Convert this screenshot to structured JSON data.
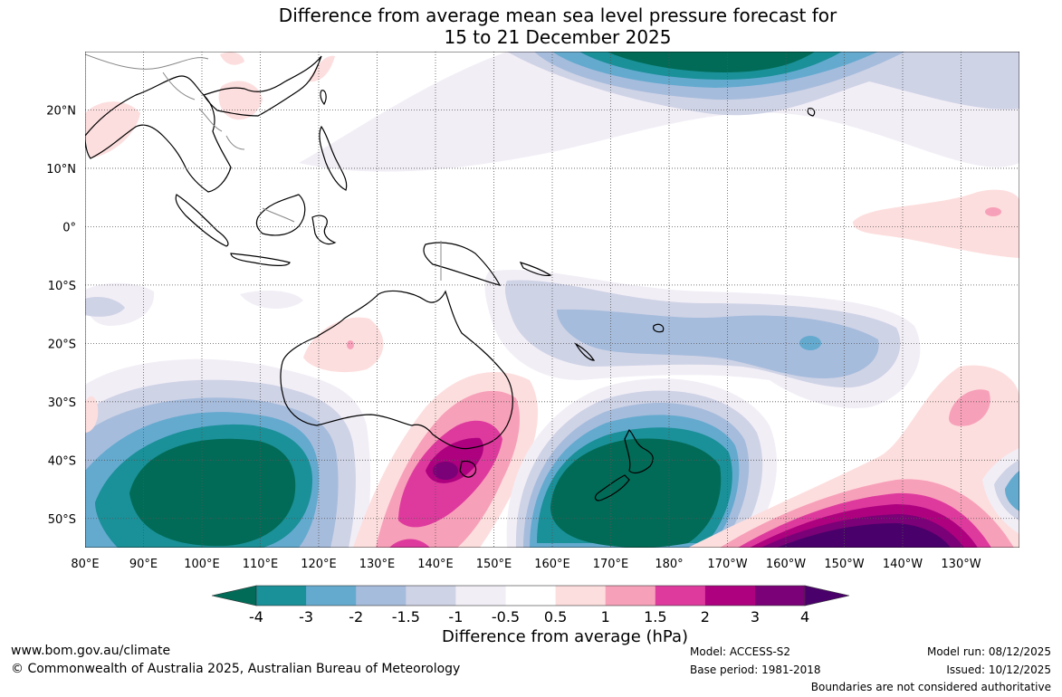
{
  "title": {
    "line1": "Difference from average mean sea level pressure forecast for",
    "line2": "15 to 21 December 2025"
  },
  "map": {
    "lon_labels": [
      "80°E",
      "90°E",
      "100°E",
      "110°E",
      "120°E",
      "130°E",
      "140°E",
      "150°E",
      "160°E",
      "170°E",
      "180°",
      "170°W",
      "160°W",
      "150°W",
      "140°W",
      "130°W"
    ],
    "lat_labels": [
      "20°N",
      "10°N",
      "0°",
      "10°S",
      "20°S",
      "30°S",
      "40°S",
      "50°S"
    ],
    "lon_range": [
      80,
      240
    ],
    "lat_range": [
      -55,
      30
    ]
  },
  "colorbar": {
    "tick_labels": [
      "-4",
      "-3",
      "-2",
      "-1.5",
      "-1",
      "-0.5",
      "0.5",
      "1",
      "1.5",
      "2",
      "3",
      "4"
    ],
    "colors": [
      "#016b57",
      "#1a9098",
      "#64aacf",
      "#a6bcdc",
      "#cfd3e6",
      "#f2eef6",
      "#ffffff",
      "#fddede",
      "#f7a0b9",
      "#de3a9e",
      "#ad017f",
      "#7a0177",
      "#49006a"
    ],
    "label": "Difference from average (hPa)"
  },
  "footer": {
    "website": "www.bom.gov.au/climate",
    "copyright": "© Commonwealth of Australia 2025, Australian Bureau of Meteorology",
    "model": "Model: ACCESS-S2",
    "base_period": "Base period: 1981-2018",
    "model_run": "Model run: 08/12/2025",
    "issued": "Issued: 10/12/2025",
    "boundaries": "Boundaries are not considered authoritative"
  }
}
